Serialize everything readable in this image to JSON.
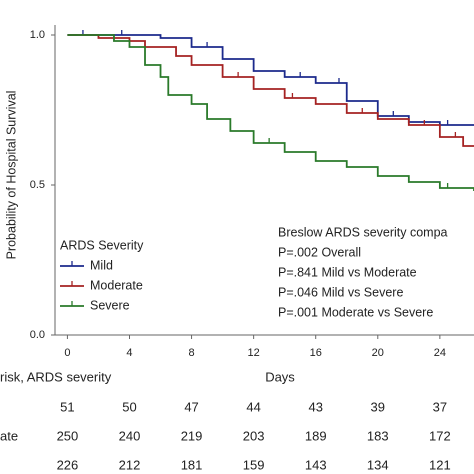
{
  "chart_data": {
    "type": "step",
    "y_label": "Probability of Hospital Survival",
    "x_label": "Days",
    "xlim": [
      -0.8,
      26.2
    ],
    "xticks": [
      0,
      4,
      8,
      12,
      16,
      20,
      24
    ],
    "ylim": [
      0,
      1
    ],
    "yticks": [
      {
        "value": 0,
        "label": "0.0"
      },
      {
        "value": 0.5,
        "label": "0.5"
      },
      {
        "value": 1,
        "label": "1.0"
      }
    ],
    "legend_title": "ARDS Severity",
    "legend": "lower-left",
    "series": [
      {
        "name": "Mild",
        "color": "#1c2a8c",
        "x": [
          0,
          6,
          8,
          10,
          12,
          14,
          16,
          18,
          20,
          22,
          24,
          26.2
        ],
        "values": [
          1.0,
          0.99,
          0.96,
          0.92,
          0.88,
          0.86,
          0.84,
          0.78,
          0.73,
          0.71,
          0.7,
          0.7
        ],
        "censored": [
          1,
          3.5,
          9,
          15,
          17.5,
          21,
          24.5
        ]
      },
      {
        "name": "Moderate",
        "color": "#a52222",
        "x": [
          0,
          2,
          4,
          5,
          7,
          8,
          10,
          12,
          14,
          16,
          18,
          20,
          22,
          24,
          25.5,
          26.2
        ],
        "values": [
          1.0,
          0.99,
          0.98,
          0.96,
          0.93,
          0.9,
          0.86,
          0.82,
          0.79,
          0.77,
          0.74,
          0.72,
          0.7,
          0.66,
          0.63,
          0.63
        ],
        "censored": [
          11,
          14.5,
          19,
          23,
          25
        ]
      },
      {
        "name": "Severe",
        "color": "#2a7a2a",
        "x": [
          0,
          3,
          4,
          5,
          6,
          6.5,
          8,
          9,
          10.5,
          12,
          14,
          16,
          18,
          20,
          22,
          24,
          26.2
        ],
        "values": [
          1.0,
          0.98,
          0.96,
          0.9,
          0.86,
          0.8,
          0.77,
          0.72,
          0.68,
          0.64,
          0.61,
          0.58,
          0.56,
          0.53,
          0.51,
          0.49,
          0.48
        ],
        "censored": [
          13,
          24.5
        ]
      }
    ],
    "annotations": [
      "Breslow ARDS severity compa",
      "P=.002 Overall",
      "P=.841 Mild vs Moderate",
      "P=.046 Mild vs Severe",
      "P=.001 Moderate vs Severe"
    ]
  },
  "risk_table": {
    "header": "risk, ARDS severity",
    "rows": [
      {
        "label": null,
        "values": [
          51,
          50,
          47,
          44,
          43,
          39,
          37
        ]
      },
      {
        "label": "ate",
        "values": [
          250,
          240,
          219,
          203,
          189,
          183,
          172
        ]
      },
      {
        "label": null,
        "values": [
          226,
          212,
          181,
          159,
          143,
          134,
          121
        ]
      }
    ]
  }
}
